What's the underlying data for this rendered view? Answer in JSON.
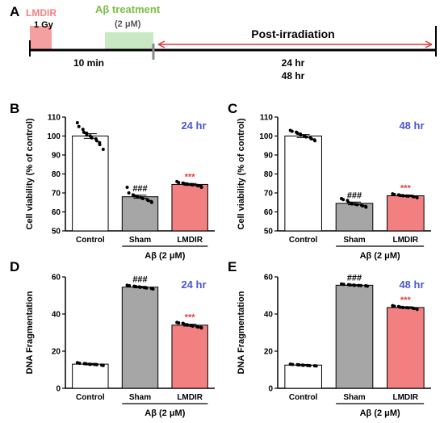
{
  "colors": {
    "lmdir_red": "#f28080",
    "abeta_green": "#7bc043",
    "abeta_box": "#c9e8c4",
    "sham_gray": "#a6a6a6",
    "control_white": "#ffffff",
    "timepoint_blue": "#4a58cf",
    "post_red": "#e03a3a",
    "sig_red": "#e83b3b",
    "text": "#000000"
  },
  "timeline": {
    "panel_label": "A",
    "lmdir_label": "LMDIR",
    "dose_label": "1 Gy",
    "treatment_label": "Aβ treatment",
    "concentration_label": "(2 μM)",
    "post_label": "Post-irradiation",
    "interval_label": "10 min",
    "time_24": "24 hr",
    "time_48": "48 hr"
  },
  "chart_data": [
    {
      "panel": "B",
      "type": "bar",
      "timepoint": "24 hr",
      "categories": [
        "Control",
        "Sham",
        "LMDIR"
      ],
      "group_label": "Aβ (2 μM)",
      "ylabel": "Cell viability (% of control)",
      "ylim": [
        50,
        110
      ],
      "yticks": [
        50,
        60,
        70,
        80,
        90,
        100,
        110
      ],
      "values": [
        100,
        68,
        74.5
      ],
      "errors": [
        1.2,
        0.8,
        0.5
      ],
      "annotations": [
        "",
        "###",
        "***"
      ],
      "points": [
        [
          107,
          105,
          103.5,
          102,
          101.5,
          100.5,
          100,
          99,
          98.5,
          97.5,
          96.5,
          95.5,
          93
        ],
        [
          73,
          70,
          69,
          68.5,
          68.2,
          67.8,
          67.5,
          67,
          66.5,
          66,
          65.5,
          65
        ],
        [
          76,
          75.5,
          75.2,
          75,
          74.8,
          74.6,
          74.4,
          74.2,
          74,
          73.8,
          73.5,
          73
        ]
      ]
    },
    {
      "panel": "C",
      "type": "bar",
      "timepoint": "48 hr",
      "categories": [
        "Control",
        "Sham",
        "LMDIR"
      ],
      "group_label": "Aβ (2 μM)",
      "ylabel": "Cell viability (% of control)",
      "ylim": [
        50,
        110
      ],
      "yticks": [
        50,
        60,
        70,
        80,
        90,
        100,
        110
      ],
      "values": [
        100,
        64.5,
        68.5
      ],
      "errors": [
        0.8,
        0.7,
        0.4
      ],
      "annotations": [
        "",
        "###",
        "***"
      ],
      "points": [
        [
          103,
          102.5,
          102,
          101.5,
          101,
          100.5,
          100,
          99.5,
          99,
          98.5,
          98,
          97.5
        ],
        [
          67,
          66.5,
          66,
          65,
          64.5,
          64.2,
          64,
          63.8,
          63.5,
          63.2,
          63,
          62.5
        ],
        [
          69.5,
          69.2,
          69,
          68.8,
          68.6,
          68.5,
          68.4,
          68.3,
          68.2,
          68,
          67.8,
          67.5
        ]
      ]
    },
    {
      "panel": "D",
      "type": "bar",
      "timepoint": "24 hr",
      "categories": [
        "Control",
        "Sham",
        "LMDIR"
      ],
      "group_label": "Aβ (2 μM)",
      "ylabel": "DNA Fragmentation",
      "ylim": [
        0,
        60
      ],
      "yticks": [
        0,
        20,
        40,
        60
      ],
      "values": [
        13,
        54.5,
        34
      ],
      "errors": [
        0.4,
        0.4,
        0.5
      ],
      "annotations": [
        "",
        "###",
        "***"
      ],
      "points": [
        [
          13.8,
          13.5,
          13.3,
          13.2,
          13,
          12.9,
          12.8,
          12.7,
          12.5,
          12.3
        ],
        [
          55.5,
          55.2,
          55,
          54.8,
          54.6,
          54.4,
          54.2,
          54,
          53.8,
          53.5
        ],
        [
          35.5,
          35.2,
          35,
          34.6,
          34.3,
          34,
          33.8,
          33.5,
          33.2,
          33,
          32.8,
          32.5
        ]
      ]
    },
    {
      "panel": "E",
      "type": "bar",
      "timepoint": "48 hr",
      "categories": [
        "Control",
        "Sham",
        "LMDIR"
      ],
      "group_label": "Aβ (2 μM)",
      "ylabel": "DNA Fragmentation",
      "ylim": [
        0,
        60
      ],
      "yticks": [
        0,
        20,
        40,
        60
      ],
      "values": [
        12.5,
        55.5,
        43.5
      ],
      "errors": [
        0.3,
        0.3,
        0.4
      ],
      "annotations": [
        "",
        "###",
        "***"
      ],
      "points": [
        [
          13,
          12.8,
          12.7,
          12.6,
          12.5,
          12.4,
          12.3,
          12.2,
          12.1,
          12
        ],
        [
          56.2,
          56,
          55.8,
          55.7,
          55.6,
          55.5,
          55.4,
          55.3,
          55.2,
          55
        ],
        [
          44.5,
          44.2,
          44,
          43.8,
          43.6,
          43.5,
          43.4,
          43.3,
          43.2,
          43,
          42.8,
          42.5
        ]
      ]
    }
  ]
}
